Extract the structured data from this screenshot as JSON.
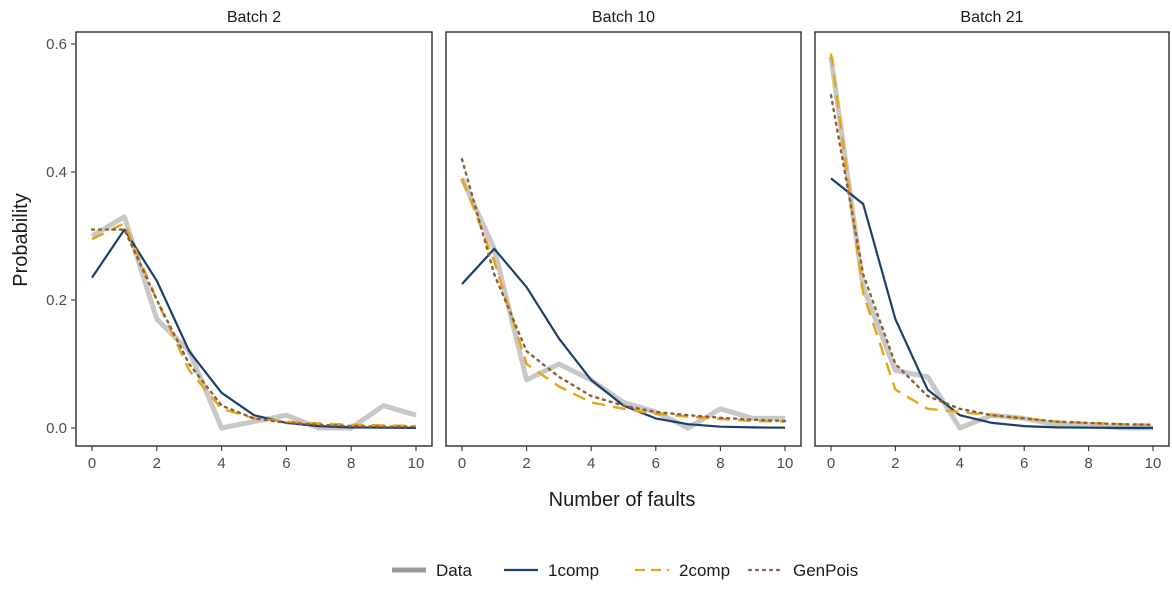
{
  "chart_data": {
    "type": "line",
    "xlabel": "Number of faults",
    "ylabel": "Probability",
    "xlim": [
      0,
      10
    ],
    "ylim": [
      0,
      0.6
    ],
    "x_ticks": [
      0,
      2,
      4,
      6,
      8,
      10
    ],
    "y_ticks": [
      0.0,
      0.2,
      0.4,
      0.6
    ],
    "y_tick_labels": [
      "0.0",
      "0.2",
      "0.4",
      "0.6"
    ],
    "grid": false,
    "legend_position": "bottom",
    "series_styles": [
      {
        "name": "Data",
        "color": "#c8c8c8",
        "dash": "solid"
      },
      {
        "name": "1comp",
        "color": "#1b3f6b",
        "dash": "solid"
      },
      {
        "name": "2comp",
        "color": "#e8a317",
        "dash": "dashed"
      },
      {
        "name": "GenPois",
        "color": "#8b5e3c",
        "dash": "dotted"
      }
    ],
    "x": [
      0,
      1,
      2,
      3,
      4,
      5,
      6,
      7,
      8,
      9,
      10
    ],
    "panels": [
      {
        "title": "Batch 2",
        "series": [
          {
            "name": "Data",
            "values": [
              0.3,
              0.33,
              0.17,
              0.12,
              0.0,
              0.01,
              0.02,
              0.0,
              0.0,
              0.035,
              0.02
            ]
          },
          {
            "name": "1comp",
            "values": [
              0.235,
              0.31,
              0.23,
              0.12,
              0.055,
              0.02,
              0.008,
              0.003,
              0.001,
              0.0005,
              0.0002
            ]
          },
          {
            "name": "2comp",
            "values": [
              0.295,
              0.32,
              0.2,
              0.09,
              0.03,
              0.015,
              0.01,
              0.007,
              0.005,
              0.004,
              0.003
            ]
          },
          {
            "name": "GenPois",
            "values": [
              0.31,
              0.31,
              0.2,
              0.1,
              0.035,
              0.015,
              0.008,
              0.005,
              0.003,
              0.002,
              0.002
            ]
          }
        ]
      },
      {
        "title": "Batch 10",
        "series": [
          {
            "name": "Data",
            "values": [
              0.39,
              0.28,
              0.075,
              0.1,
              0.075,
              0.04,
              0.025,
              0.0,
              0.03,
              0.015,
              0.015
            ]
          },
          {
            "name": "1comp",
            "values": [
              0.225,
              0.28,
              0.22,
              0.14,
              0.075,
              0.035,
              0.015,
              0.006,
              0.002,
              0.001,
              0.0004
            ]
          },
          {
            "name": "2comp",
            "values": [
              0.39,
              0.26,
              0.1,
              0.065,
              0.04,
              0.03,
              0.022,
              0.018,
              0.014,
              0.011,
              0.01
            ]
          },
          {
            "name": "GenPois",
            "values": [
              0.42,
              0.24,
              0.12,
              0.08,
              0.05,
              0.035,
              0.025,
              0.02,
              0.016,
              0.013,
              0.011
            ]
          }
        ]
      },
      {
        "title": "Batch 21",
        "series": [
          {
            "name": "Data",
            "values": [
              0.58,
              0.22,
              0.09,
              0.08,
              0.0,
              0.02,
              0.015,
              0.005,
              0.005,
              0.0,
              0.0
            ]
          },
          {
            "name": "1comp",
            "values": [
              0.39,
              0.35,
              0.17,
              0.06,
              0.02,
              0.008,
              0.003,
              0.001,
              0.0005,
              0.0002,
              0.0001
            ]
          },
          {
            "name": "2comp",
            "values": [
              0.585,
              0.21,
              0.06,
              0.03,
              0.025,
              0.02,
              0.015,
              0.01,
              0.008,
              0.006,
              0.005
            ]
          },
          {
            "name": "GenPois",
            "values": [
              0.52,
              0.24,
              0.1,
              0.05,
              0.03,
              0.02,
              0.015,
              0.01,
              0.008,
              0.006,
              0.005
            ]
          }
        ]
      }
    ]
  }
}
